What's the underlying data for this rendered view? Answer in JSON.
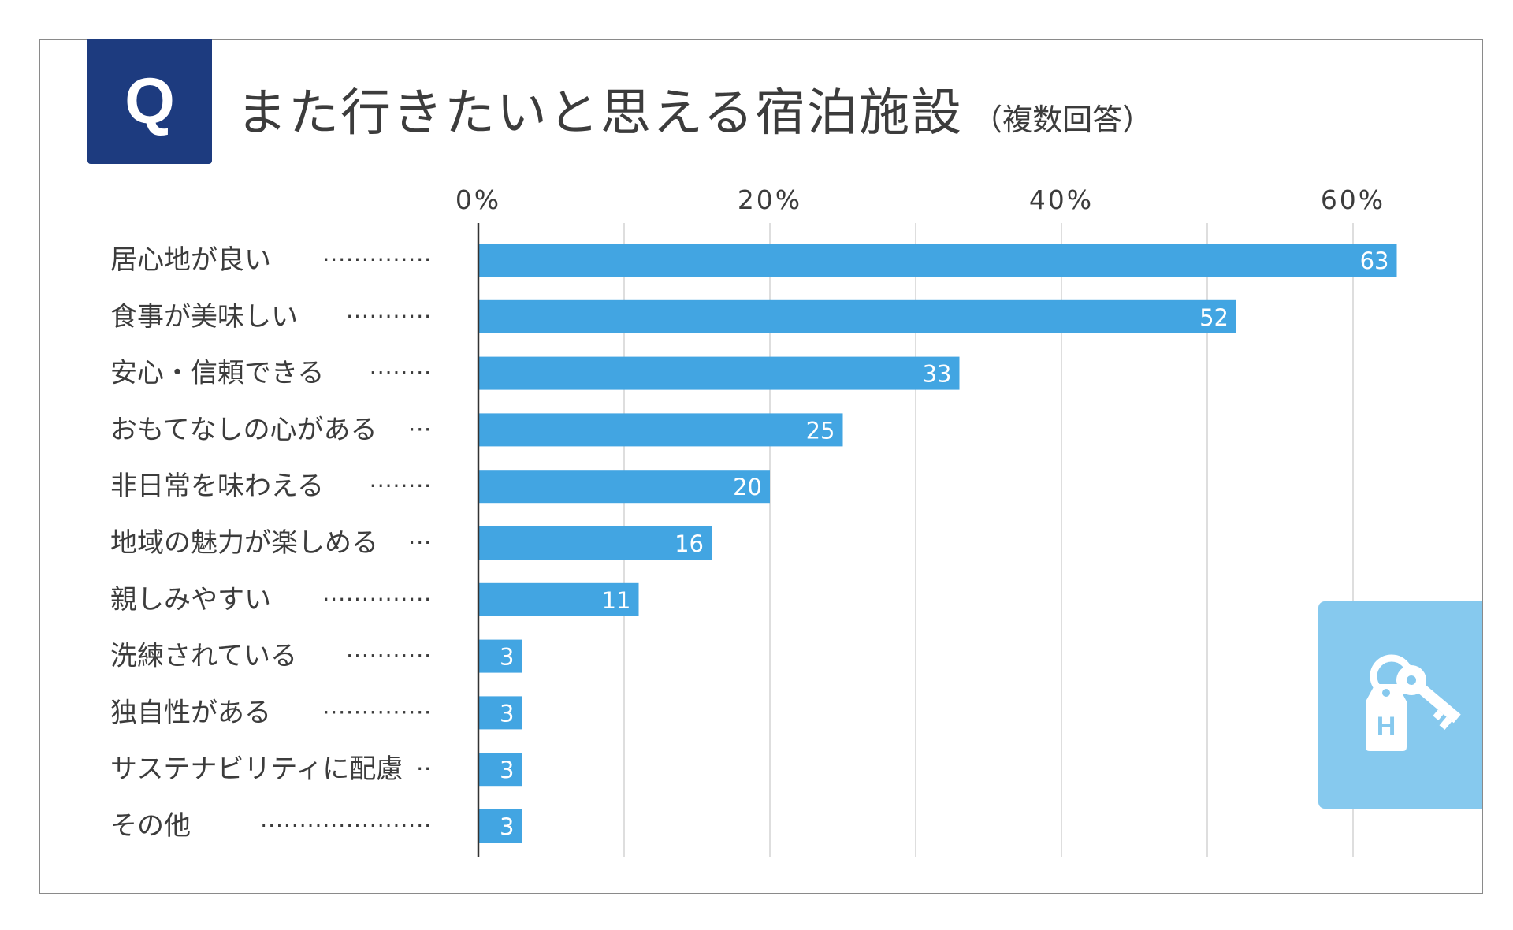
{
  "header": {
    "badge": "Q",
    "title": "また行きたいと思える宿泊施設",
    "subtitle": "（複数回答）"
  },
  "icon": {
    "name": "hotel-key-icon",
    "letter": "H",
    "color": "#86c9ee"
  },
  "colors": {
    "badge": "#1d3b7f",
    "bar": "#42a5e2",
    "text": "#3c3c3c"
  },
  "chart_data": {
    "type": "bar",
    "orientation": "horizontal",
    "title": "また行きたいと思える宿泊施設（複数回答）",
    "xlabel": "",
    "ylabel": "",
    "xlim": [
      0,
      60
    ],
    "ticks": [
      0,
      20,
      40,
      60
    ],
    "tick_labels": [
      "0%",
      "20%",
      "40%",
      "60%"
    ],
    "grid": true,
    "categories": [
      {
        "label": "居心地が良い",
        "leader": "··············"
      },
      {
        "label": "食事が美味しい",
        "leader": "···········"
      },
      {
        "label": "安心・信頼できる",
        "leader": "········"
      },
      {
        "label": "おもてなしの心がある",
        "leader": "···"
      },
      {
        "label": "非日常を味わえる",
        "leader": "········"
      },
      {
        "label": "地域の魅力が楽しめる",
        "leader": "···"
      },
      {
        "label": "親しみやすい",
        "leader": "··············"
      },
      {
        "label": "洗練されている",
        "leader": "···········"
      },
      {
        "label": "独自性がある",
        "leader": "··············"
      },
      {
        "label": "サステナビリティに配慮",
        "leader": "··"
      },
      {
        "label": "その他",
        "leader": "······················"
      }
    ],
    "values": [
      63,
      52,
      33,
      25,
      20,
      16,
      11,
      3,
      3,
      3,
      3
    ],
    "value_labels": [
      "63",
      "52",
      "33",
      "25",
      "20",
      "16",
      "11",
      "3",
      "3",
      "3",
      "3"
    ]
  }
}
